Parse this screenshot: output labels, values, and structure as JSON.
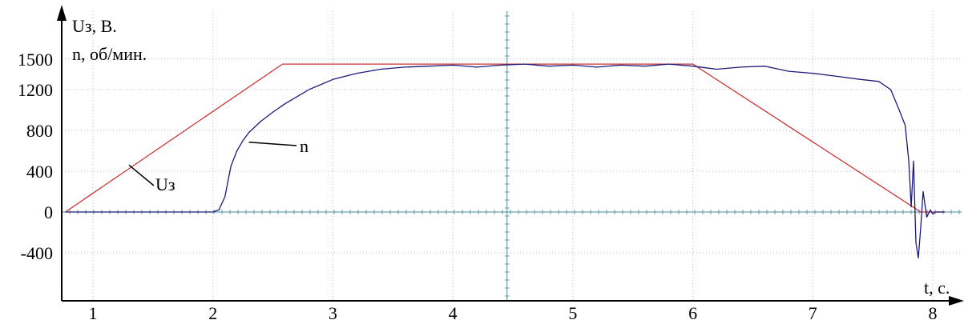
{
  "chart_data": {
    "type": "line",
    "ylabel_lines": [
      "Uз, В.",
      "n, об/мин."
    ],
    "xlabel": "t, с.",
    "xlim": [
      0.75,
      8.1
    ],
    "ylim": [
      -560,
      2000
    ],
    "x_ticks": [
      1,
      2,
      3,
      4,
      5,
      6,
      7,
      8
    ],
    "y_ticks": [
      -400,
      0,
      400,
      800,
      1200,
      1500
    ],
    "grid": true,
    "series": [
      {
        "name": "Uз",
        "color": "#cc3333",
        "x": [
          0.77,
          2.58,
          6.0,
          7.9,
          8.1
        ],
        "y": [
          0,
          1450,
          1450,
          0,
          0
        ]
      },
      {
        "name": "n",
        "color": "#1a1a7a",
        "x": [
          0.77,
          2.0,
          2.05,
          2.1,
          2.15,
          2.2,
          2.25,
          2.3,
          2.4,
          2.5,
          2.6,
          2.8,
          3.0,
          3.2,
          3.4,
          3.6,
          3.8,
          4.0,
          4.2,
          4.4,
          4.6,
          4.8,
          5.0,
          5.2,
          5.4,
          5.6,
          5.8,
          6.0,
          6.2,
          6.4,
          6.6,
          6.8,
          7.0,
          7.2,
          7.4,
          7.55,
          7.65,
          7.72,
          7.77,
          7.8,
          7.82,
          7.84,
          7.86,
          7.88,
          7.9,
          7.92,
          7.95,
          7.98,
          8.0,
          8.02,
          8.05,
          8.1
        ],
        "y": [
          0,
          0,
          20,
          150,
          450,
          600,
          700,
          780,
          890,
          980,
          1060,
          1200,
          1300,
          1360,
          1400,
          1420,
          1430,
          1440,
          1420,
          1440,
          1450,
          1430,
          1440,
          1420,
          1440,
          1430,
          1450,
          1430,
          1400,
          1420,
          1430,
          1380,
          1360,
          1330,
          1300,
          1280,
          1200,
          1000,
          850,
          500,
          50,
          500,
          -300,
          -450,
          -150,
          200,
          -50,
          20,
          -20,
          0,
          0,
          0
        ]
      }
    ],
    "annotations": [
      {
        "text": "n",
        "x": 2.3,
        "y": 700
      },
      {
        "text": "Uз",
        "x": 1.3,
        "y": 460
      }
    ]
  }
}
